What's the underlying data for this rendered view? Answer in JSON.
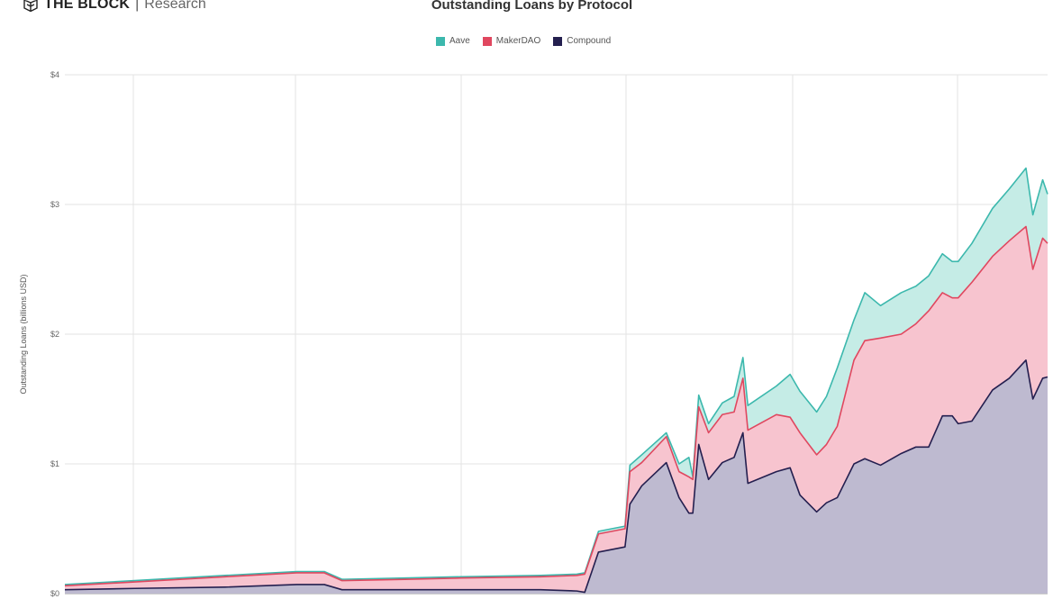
{
  "brand": {
    "name": "THE BLOCK",
    "section": "Research"
  },
  "chart_data": {
    "type": "area",
    "stacked": true,
    "title": "Outstanding Loans by Protocol",
    "xlabel": "",
    "ylabel": "Outstanding Loans (billions USD)",
    "ylim": [
      0,
      4
    ],
    "yticks": [
      0,
      1,
      2,
      3,
      4
    ],
    "ytick_labels": [
      "$0",
      "$1",
      "$2",
      "$3",
      "$4"
    ],
    "xlim": [
      0,
      100
    ],
    "grid": true,
    "legend_position": "top-center",
    "x": [
      0,
      7.1,
      16.3,
      23.6,
      26.4,
      28.2,
      34.6,
      40.3,
      48.4,
      52.1,
      52.9,
      54.3,
      57.0,
      57.5,
      58.7,
      61.2,
      62.5,
      63.5,
      63.9,
      64.5,
      65.5,
      66.9,
      68.1,
      69.0,
      69.5,
      72.4,
      73.8,
      74.8,
      76.5,
      77.5,
      78.6,
      80.3,
      81.4,
      83.0,
      85.1,
      86.6,
      87.9,
      89.3,
      90.3,
      90.9,
      92.3,
      94.4,
      96.1,
      97.8,
      98.5,
      99.5,
      100
    ],
    "series": [
      {
        "name": "Compound",
        "color": "#241f4f",
        "fill": "#bebad0",
        "values": [
          0.03,
          0.04,
          0.05,
          0.07,
          0.07,
          0.03,
          0.03,
          0.03,
          0.03,
          0.02,
          0.01,
          0.32,
          0.36,
          0.69,
          0.83,
          1.01,
          0.74,
          0.62,
          0.62,
          1.15,
          0.88,
          1.01,
          1.05,
          1.24,
          0.85,
          0.94,
          0.97,
          0.76,
          0.63,
          0.7,
          0.74,
          1.0,
          1.04,
          0.99,
          1.08,
          1.13,
          1.13,
          1.37,
          1.37,
          1.31,
          1.33,
          1.57,
          1.66,
          1.8,
          1.5,
          1.66,
          1.67
        ]
      },
      {
        "name": "MakerDAO",
        "color": "#e0475f",
        "fill": "#f7c4cf",
        "values": [
          0.03,
          0.05,
          0.08,
          0.09,
          0.09,
          0.07,
          0.08,
          0.09,
          0.1,
          0.12,
          0.14,
          0.14,
          0.14,
          0.25,
          0.18,
          0.2,
          0.2,
          0.28,
          0.26,
          0.29,
          0.36,
          0.37,
          0.35,
          0.42,
          0.41,
          0.44,
          0.39,
          0.48,
          0.44,
          0.45,
          0.55,
          0.8,
          0.91,
          0.98,
          0.92,
          0.95,
          1.05,
          0.95,
          0.91,
          0.97,
          1.07,
          1.03,
          1.06,
          1.03,
          1.0,
          1.08,
          1.03
        ]
      },
      {
        "name": "Aave",
        "color": "#3cb8ad",
        "fill": "#c5ece6",
        "values": [
          0.01,
          0.01,
          0.01,
          0.01,
          0.01,
          0.01,
          0.01,
          0.01,
          0.01,
          0.01,
          0.01,
          0.02,
          0.02,
          0.05,
          0.06,
          0.03,
          0.06,
          0.15,
          0.02,
          0.09,
          0.07,
          0.09,
          0.12,
          0.16,
          0.19,
          0.22,
          0.33,
          0.32,
          0.33,
          0.37,
          0.45,
          0.31,
          0.37,
          0.25,
          0.32,
          0.29,
          0.27,
          0.3,
          0.28,
          0.28,
          0.3,
          0.37,
          0.4,
          0.45,
          0.42,
          0.45,
          0.38
        ]
      }
    ],
    "legend": [
      "Aave",
      "MakerDAO",
      "Compound"
    ]
  }
}
